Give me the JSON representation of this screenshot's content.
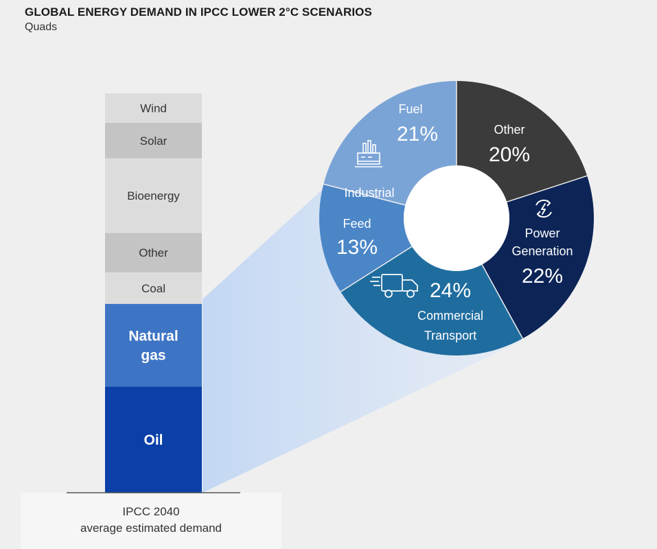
{
  "title": "GLOBAL ENERGY DEMAND IN IPCC LOWER 2°C SCENARIOS",
  "subtitle": "Quads",
  "chart_data": [
    {
      "type": "bar",
      "stacked": true,
      "categories": [
        "IPCC 2040 average estimated demand"
      ],
      "xlabel_lines": [
        "IPCC 2040",
        "average estimated demand"
      ],
      "series": [
        {
          "name": "Oil",
          "label": "Oil",
          "color": "#0a40a8",
          "label_color": "#ffffff",
          "bold": true,
          "values": [
            2.7
          ]
        },
        {
          "name": "Natural gas",
          "label_lines": [
            "Natural",
            "gas"
          ],
          "color": "#3e74c4",
          "label_color": "#ffffff",
          "bold": true,
          "values": [
            2.1
          ]
        },
        {
          "name": "Coal",
          "label": "Coal",
          "color": "#dcdcdc",
          "label_color": "#333333",
          "values": [
            0.8
          ]
        },
        {
          "name": "Other",
          "label": "Other",
          "color": "#c4c4c4",
          "label_color": "#333333",
          "values": [
            1.0
          ]
        },
        {
          "name": "Bioenergy",
          "label": "Bioenergy",
          "color": "#dcdcdc",
          "label_color": "#333333",
          "values": [
            1.9
          ]
        },
        {
          "name": "Solar",
          "label": "Solar",
          "color": "#c4c4c4",
          "label_color": "#333333",
          "values": [
            0.9
          ]
        },
        {
          "name": "Wind",
          "label": "Wind",
          "color": "#dcdcdc",
          "label_color": "#333333",
          "values": [
            0.75
          ]
        }
      ]
    },
    {
      "type": "pie",
      "donut": true,
      "breakdown_of": "Oil",
      "slices": [
        {
          "name": "Other",
          "value": 20,
          "pct_label": "20%",
          "color": "#3b3b3b"
        },
        {
          "name": "Power Generation",
          "label_lines": [
            "Power",
            "Generation"
          ],
          "value": 22,
          "pct_label": "22%",
          "color": "#0c2456",
          "icon": "power-icon"
        },
        {
          "name": "Commercial Transport",
          "label_lines": [
            "Commercial",
            "Transport"
          ],
          "value": 24,
          "pct_label": "24%",
          "color": "#1f6d9f",
          "icon": "truck-icon"
        },
        {
          "name": "Feed",
          "value": 13,
          "pct_label": "13%",
          "color": "#4b86c7"
        },
        {
          "name": "Fuel",
          "value": 21,
          "pct_label": "21%",
          "color": "#7ba4d6"
        }
      ],
      "group_label": "Industrial",
      "group_icon": "factory-icon"
    }
  ]
}
